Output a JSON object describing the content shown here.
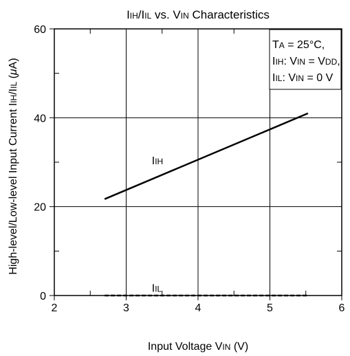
{
  "chart_data": {
    "type": "line",
    "title": {
      "parts": [
        {
          "t": "I",
          "sub": false
        },
        {
          "t": "IH",
          "sub": true
        },
        {
          "t": "/I",
          "sub": false
        },
        {
          "t": "IL",
          "sub": true
        },
        {
          "t": " vs. V",
          "sub": false
        },
        {
          "t": "IN",
          "sub": true
        },
        {
          "t": " Characteristics",
          "sub": false
        }
      ]
    },
    "xlabel": {
      "parts": [
        {
          "t": "Input Voltage V",
          "sub": false
        },
        {
          "t": "IN",
          "sub": true
        },
        {
          "t": " (V)",
          "sub": false
        }
      ]
    },
    "ylabel": {
      "parts": [
        {
          "t": "High-level/Low-level Input Current I",
          "sub": false
        },
        {
          "t": "IH",
          "sub": true
        },
        {
          "t": "/I",
          "sub": false
        },
        {
          "t": "IL",
          "sub": true
        },
        {
          "t": " (",
          "sub": false
        },
        {
          "t": "μ",
          "sub": false,
          "italic": true
        },
        {
          "t": "A)",
          "sub": false
        }
      ]
    },
    "xlim": [
      2,
      6
    ],
    "ylim": [
      0,
      60
    ],
    "x_ticks": [
      2,
      3,
      4,
      5,
      6
    ],
    "y_ticks": [
      0,
      20,
      40,
      60
    ],
    "x_minor_ticks": [
      2.5,
      3.5,
      4.5,
      5.5
    ],
    "y_minor_ticks": [
      10,
      30,
      50
    ],
    "grid": true,
    "series": [
      {
        "name": "IIH",
        "label_parts": [
          {
            "t": "I",
            "sub": false
          },
          {
            "t": "IH",
            "sub": true
          }
        ],
        "label_at": [
          3.5,
          30.5
        ],
        "style": "solid",
        "x": [
          2.7,
          5.53
        ],
        "y": [
          21.7,
          41
        ]
      },
      {
        "name": "IIL",
        "label_parts": [
          {
            "t": "I",
            "sub": false
          },
          {
            "t": "IL",
            "sub": true
          }
        ],
        "label_at": [
          3.5,
          1.8
        ],
        "style": "dashed",
        "x": [
          2.7,
          5.53
        ],
        "y": [
          0,
          0
        ]
      }
    ],
    "annotation_lines": [
      [
        {
          "t": "T",
          "sub": false
        },
        {
          "t": "A",
          "sub": true
        },
        {
          "t": " = 25°C,",
          "sub": false
        }
      ],
      [
        {
          "t": "I",
          "sub": false
        },
        {
          "t": "IH",
          "sub": true
        },
        {
          "t": ":  V",
          "sub": false
        },
        {
          "t": "IN",
          "sub": true
        },
        {
          "t": " = V",
          "sub": false
        },
        {
          "t": "DD",
          "sub": true
        },
        {
          "t": ",",
          "sub": false
        }
      ],
      [
        {
          "t": "I",
          "sub": false
        },
        {
          "t": "IL",
          "sub": true
        },
        {
          "t": ": V",
          "sub": false
        },
        {
          "t": "IN",
          "sub": true
        },
        {
          "t": " = 0 V",
          "sub": false
        }
      ]
    ],
    "annotation_position": "top-right"
  }
}
